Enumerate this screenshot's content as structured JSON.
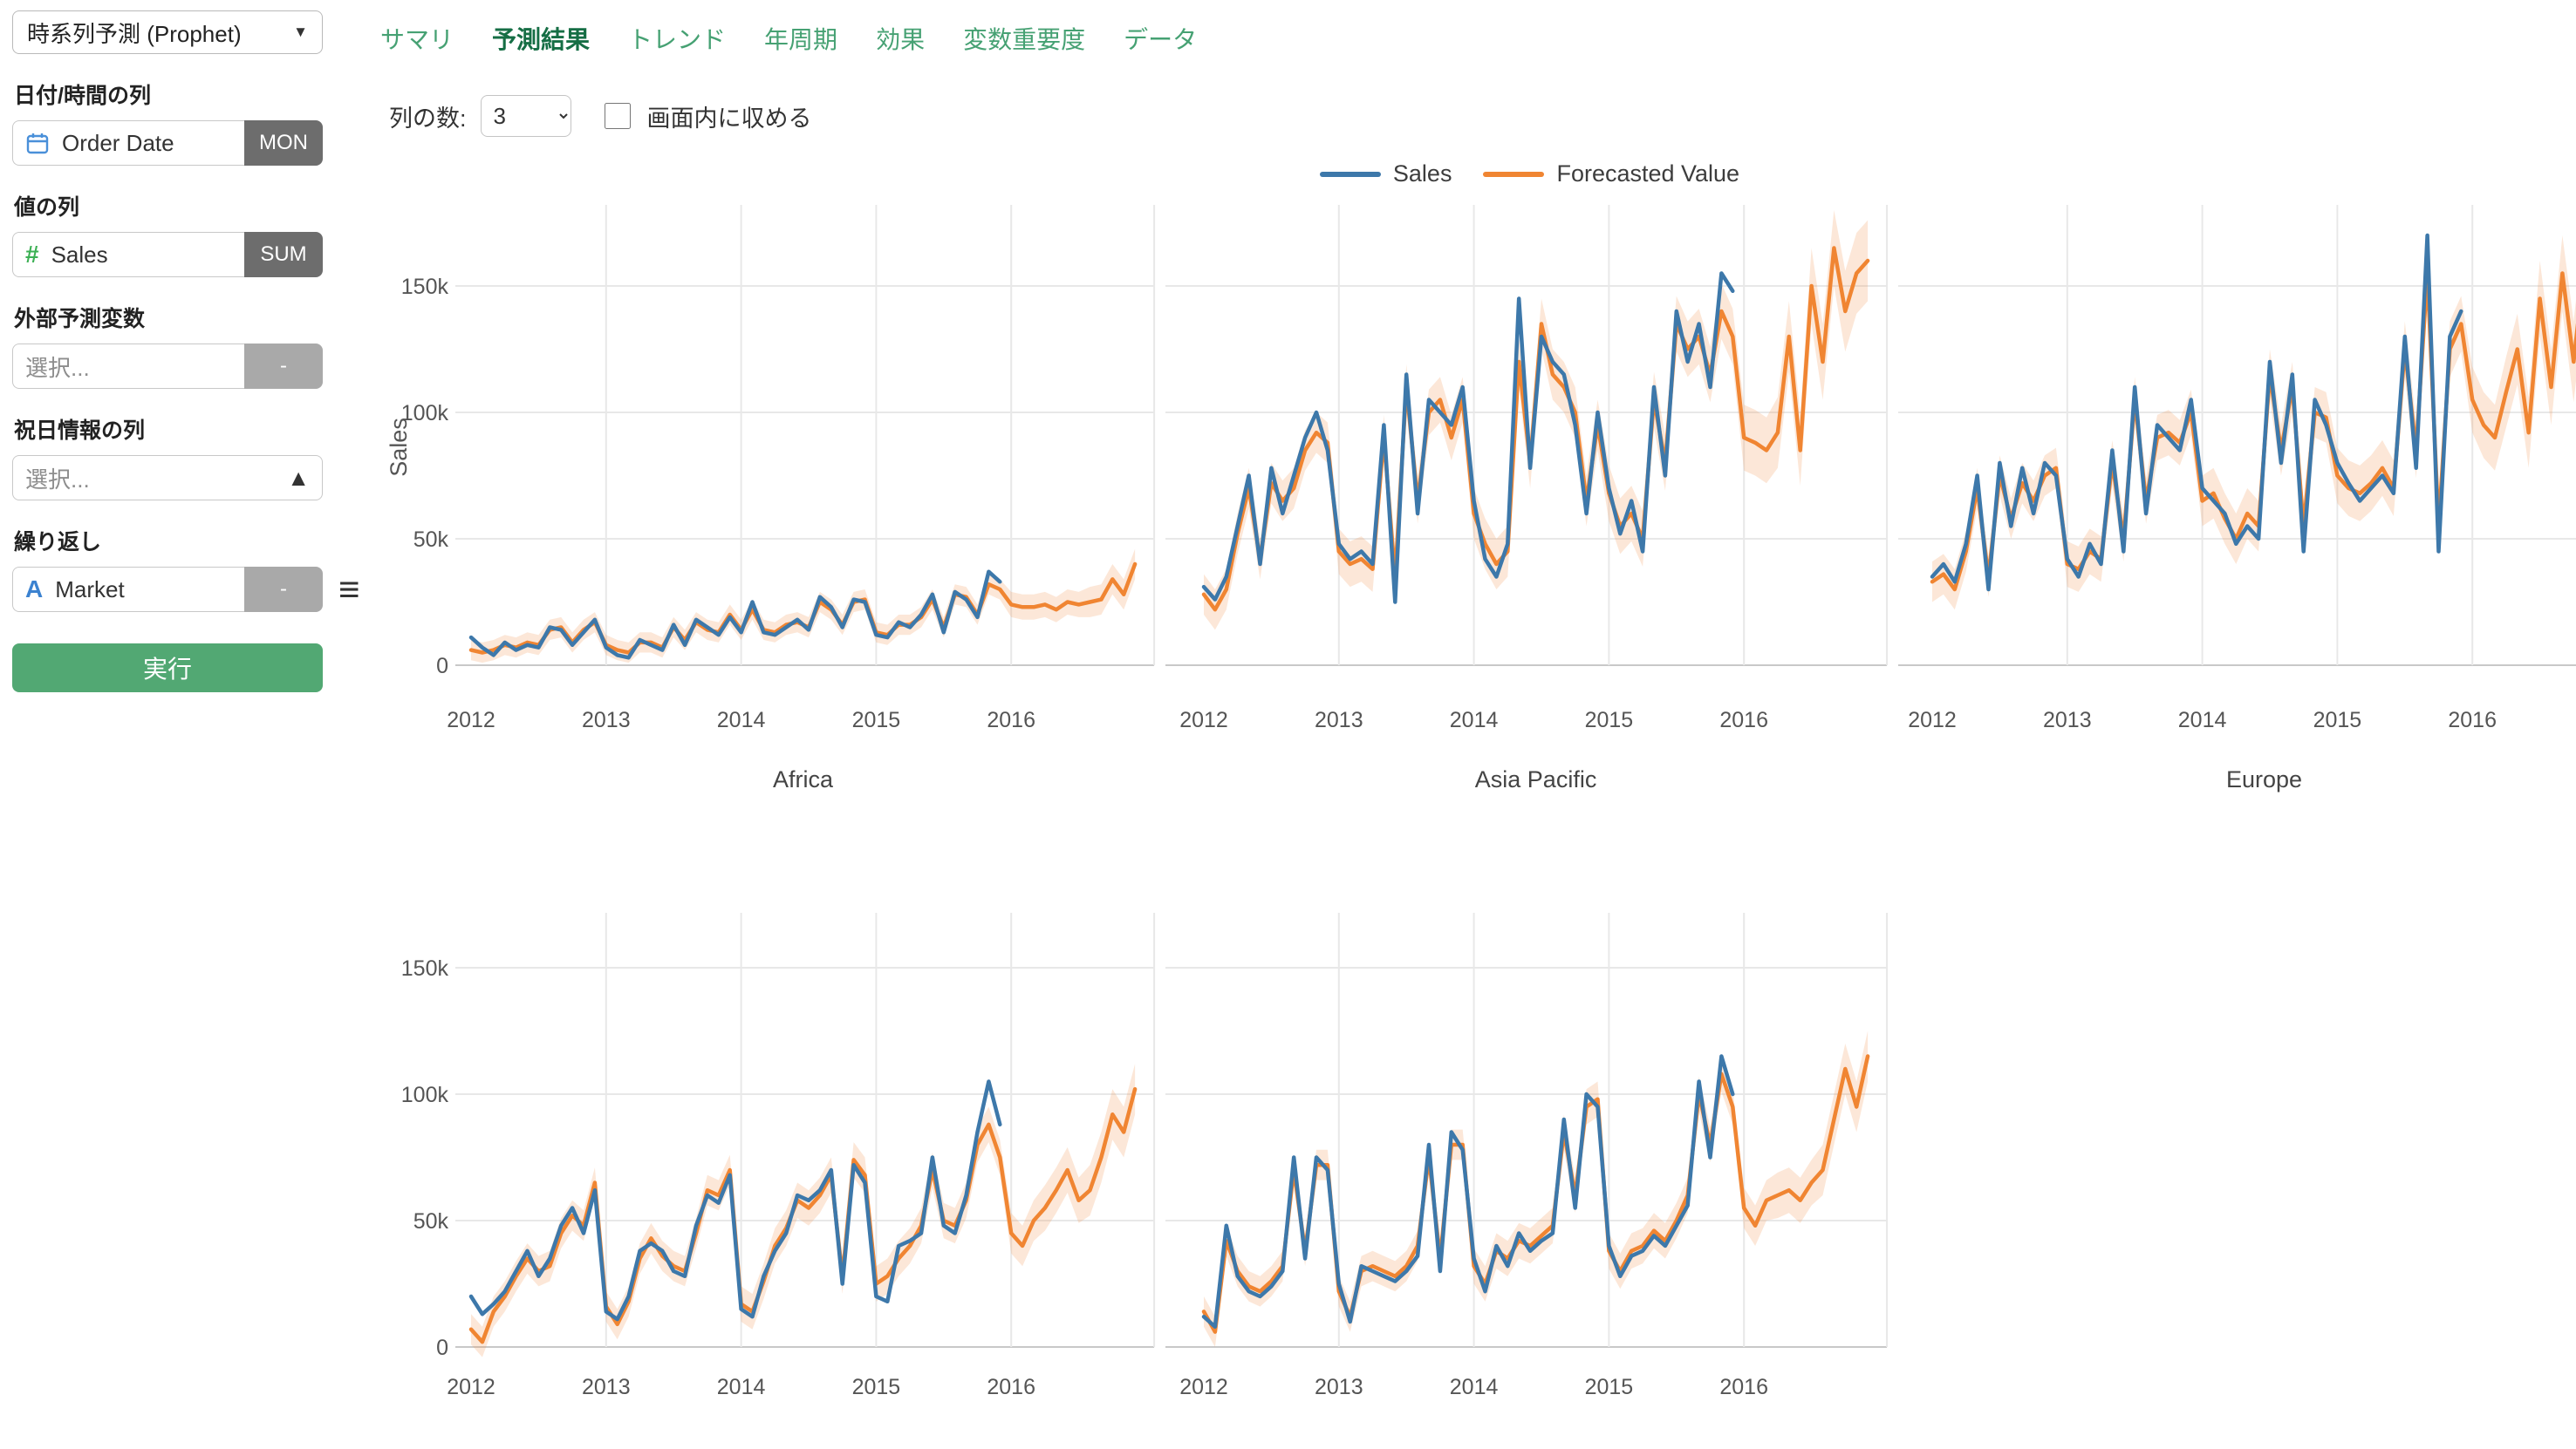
{
  "sidebar": {
    "analytics_type": "時系列予測 (Prophet)",
    "date_label": "日付/時間の列",
    "date_field": {
      "value": "Order Date",
      "badge": "MON"
    },
    "value_label": "値の列",
    "value_field": {
      "value": "Sales",
      "badge": "SUM"
    },
    "regressor_label": "外部予測変数",
    "regressor_field": {
      "placeholder": "選択...",
      "badge": "-"
    },
    "holiday_label": "祝日情報の列",
    "holiday_field": {
      "placeholder": "選択..."
    },
    "repeat_label": "繰り返し",
    "repeat_field": {
      "value": "Market",
      "badge": "-"
    },
    "run_button": "実行"
  },
  "tabs": [
    {
      "label": "サマリ",
      "active": false
    },
    {
      "label": "予測結果",
      "active": true
    },
    {
      "label": "トレンド",
      "active": false
    },
    {
      "label": "年周期",
      "active": false
    },
    {
      "label": "効果",
      "active": false
    },
    {
      "label": "変数重要度",
      "active": false
    },
    {
      "label": "データ",
      "active": false
    }
  ],
  "controls": {
    "columns_label": "列の数:",
    "columns_value": "3",
    "fit_label": "画面内に収める",
    "fit_checked": false
  },
  "legend": [
    {
      "label": "Sales",
      "color": "#3d78aa"
    },
    {
      "label": "Forecasted Value",
      "color": "#f08532"
    }
  ],
  "colors": {
    "sales_line": "#3d78aa",
    "forecast_line": "#f08532",
    "confidence_band": "#f0924e",
    "grid": "#e8e8e8",
    "zero_line": "#c8c8c8",
    "tick_text": "#555555",
    "title_text": "#444444",
    "tab_green": "#46a173",
    "tab_active_green": "#166e45",
    "run_button_green": "#52a873"
  },
  "chart_data": [
    {
      "type": "line",
      "title": "Africa",
      "ylabel": "Sales",
      "show_y_ticks": true,
      "x_years": [
        "2012",
        "2013",
        "2014",
        "2015",
        "2016"
      ],
      "y_tick_labels": [
        "0",
        "50k",
        "100k",
        "150k"
      ],
      "units": "thousands",
      "series": [
        {
          "name": "Sales",
          "values": [
            11,
            7,
            4,
            9,
            6,
            8,
            7,
            15,
            14,
            8,
            13,
            18,
            7,
            4,
            3,
            10,
            8,
            6,
            16,
            8,
            18,
            15,
            12,
            19,
            13,
            25,
            13,
            12,
            15,
            18,
            14,
            27,
            23,
            15,
            26,
            25,
            12,
            11,
            17,
            15,
            20,
            28,
            13,
            29,
            26,
            19,
            37,
            33
          ]
        },
        {
          "name": "Forecasted Value",
          "values": [
            6,
            5,
            6,
            8,
            7,
            9,
            8,
            14,
            15,
            9,
            14,
            17,
            8,
            6,
            5,
            9,
            9,
            7,
            15,
            10,
            17,
            14,
            13,
            20,
            14,
            22,
            14,
            13,
            16,
            17,
            15,
            25,
            22,
            16,
            25,
            26,
            13,
            12,
            16,
            16,
            19,
            26,
            15,
            28,
            27,
            20,
            32,
            30,
            24,
            23,
            23,
            24,
            22,
            25,
            24,
            25,
            26,
            34,
            28,
            40
          ],
          "band": [
            4,
            4,
            4,
            4,
            4,
            4,
            4,
            4,
            4,
            4,
            4,
            4,
            4,
            4,
            4,
            4,
            4,
            4,
            4,
            4,
            4,
            4,
            4,
            4,
            4,
            4,
            4,
            4,
            4,
            4,
            4,
            4,
            4,
            4,
            4,
            4,
            4,
            4,
            4,
            4,
            4,
            4,
            4,
            4,
            4,
            4,
            4,
            4,
            5,
            5,
            5,
            5,
            5,
            5,
            5,
            6,
            6,
            6,
            6,
            6
          ]
        }
      ]
    },
    {
      "type": "line",
      "title": "Asia Pacific",
      "ylabel": "",
      "show_y_ticks": false,
      "x_years": [
        "2012",
        "2013",
        "2014",
        "2015",
        "2016"
      ],
      "y_tick_labels": [
        "0",
        "50k",
        "100k",
        "150k"
      ],
      "units": "thousands",
      "series": [
        {
          "name": "Sales",
          "values": [
            31,
            26,
            35,
            55,
            75,
            40,
            78,
            60,
            75,
            90,
            100,
            85,
            48,
            42,
            45,
            40,
            95,
            25,
            115,
            60,
            105,
            100,
            95,
            110,
            65,
            42,
            35,
            48,
            145,
            78,
            130,
            120,
            115,
            95,
            60,
            100,
            70,
            52,
            65,
            45,
            110,
            75,
            140,
            120,
            135,
            110,
            155,
            148
          ]
        },
        {
          "name": "Forecasted Value",
          "values": [
            28,
            22,
            30,
            52,
            70,
            42,
            72,
            65,
            70,
            85,
            92,
            88,
            45,
            40,
            42,
            38,
            90,
            35,
            110,
            65,
            100,
            105,
            90,
            105,
            60,
            48,
            40,
            45,
            120,
            80,
            135,
            115,
            110,
            100,
            65,
            95,
            68,
            55,
            60,
            50,
            105,
            80,
            135,
            125,
            130,
            115,
            140,
            130,
            90,
            88,
            85,
            92,
            130,
            85,
            150,
            120,
            165,
            140,
            155,
            160
          ],
          "band": [
            8,
            8,
            8,
            8,
            8,
            8,
            8,
            8,
            8,
            8,
            8,
            8,
            9,
            9,
            9,
            9,
            9,
            9,
            9,
            9,
            9,
            9,
            9,
            9,
            10,
            10,
            10,
            10,
            10,
            10,
            10,
            10,
            10,
            10,
            10,
            10,
            11,
            11,
            11,
            11,
            11,
            11,
            11,
            11,
            11,
            11,
            11,
            11,
            13,
            13,
            13,
            14,
            14,
            14,
            15,
            15,
            15,
            16,
            16,
            16
          ]
        }
      ]
    },
    {
      "type": "line",
      "title": "Europe",
      "ylabel": "",
      "show_y_ticks": false,
      "x_years": [
        "2012",
        "2013",
        "2014",
        "2015",
        "2016"
      ],
      "y_tick_labels": [
        "0",
        "50k",
        "100k",
        "150k"
      ],
      "units": "thousands",
      "series": [
        {
          "name": "Sales",
          "values": [
            35,
            40,
            33,
            48,
            75,
            30,
            80,
            55,
            78,
            60,
            80,
            75,
            42,
            35,
            48,
            40,
            85,
            45,
            110,
            60,
            95,
            90,
            85,
            105,
            70,
            65,
            60,
            48,
            55,
            50,
            120,
            80,
            115,
            45,
            105,
            95,
            80,
            72,
            65,
            70,
            75,
            68,
            130,
            78,
            170,
            45,
            130,
            140
          ]
        },
        {
          "name": "Forecasted Value",
          "values": [
            33,
            36,
            30,
            45,
            70,
            35,
            75,
            58,
            72,
            65,
            75,
            78,
            40,
            38,
            45,
            42,
            80,
            50,
            105,
            65,
            90,
            92,
            88,
            100,
            65,
            68,
            58,
            50,
            60,
            55,
            115,
            85,
            110,
            55,
            100,
            98,
            75,
            70,
            68,
            72,
            78,
            70,
            125,
            85,
            155,
            55,
            125,
            135,
            105,
            95,
            90,
            108,
            125,
            92,
            145,
            110,
            155,
            120,
            160,
            130
          ],
          "band": [
            8,
            8,
            8,
            8,
            8,
            8,
            8,
            8,
            8,
            8,
            8,
            8,
            9,
            9,
            9,
            9,
            9,
            9,
            9,
            9,
            9,
            9,
            9,
            9,
            10,
            10,
            10,
            10,
            10,
            10,
            10,
            10,
            10,
            10,
            10,
            10,
            11,
            11,
            11,
            11,
            11,
            11,
            11,
            11,
            11,
            11,
            11,
            11,
            13,
            13,
            13,
            14,
            14,
            14,
            15,
            15,
            15,
            16,
            16,
            16
          ]
        }
      ]
    },
    {
      "type": "line",
      "title": "",
      "ylabel": "",
      "show_y_ticks": true,
      "x_years": [
        "2012",
        "2013",
        "2014",
        "2015",
        "2016"
      ],
      "y_tick_labels": [
        "0",
        "50k",
        "100k",
        "150k"
      ],
      "units": "thousands",
      "series": [
        {
          "name": "Sales",
          "values": [
            20,
            13,
            17,
            22,
            30,
            38,
            28,
            35,
            48,
            55,
            45,
            62,
            14,
            11,
            20,
            38,
            41,
            38,
            30,
            28,
            48,
            60,
            57,
            68,
            15,
            12,
            28,
            38,
            45,
            60,
            58,
            62,
            70,
            25,
            72,
            65,
            20,
            18,
            40,
            42,
            45,
            75,
            48,
            45,
            60,
            85,
            105,
            88
          ]
        },
        {
          "name": "Forecasted Value",
          "values": [
            7,
            2,
            14,
            20,
            28,
            35,
            30,
            32,
            45,
            52,
            48,
            65,
            16,
            9,
            18,
            35,
            43,
            36,
            32,
            30,
            45,
            62,
            60,
            70,
            17,
            14,
            26,
            40,
            47,
            58,
            55,
            60,
            68,
            28,
            74,
            68,
            25,
            28,
            35,
            40,
            48,
            70,
            50,
            48,
            58,
            80,
            88,
            75,
            45,
            40,
            50,
            55,
            62,
            70,
            58,
            62,
            75,
            92,
            85,
            102
          ],
          "band": [
            6,
            6,
            6,
            6,
            6,
            6,
            6,
            6,
            6,
            6,
            6,
            6,
            6,
            6,
            6,
            6,
            6,
            6,
            6,
            6,
            6,
            6,
            6,
            6,
            7,
            7,
            7,
            7,
            7,
            7,
            7,
            7,
            7,
            7,
            7,
            7,
            7,
            7,
            7,
            7,
            7,
            7,
            7,
            7,
            7,
            7,
            7,
            7,
            8,
            8,
            8,
            9,
            9,
            9,
            9,
            10,
            10,
            10,
            10,
            10
          ]
        }
      ]
    },
    {
      "type": "line",
      "title": "",
      "ylabel": "",
      "show_y_ticks": false,
      "x_years": [
        "2012",
        "2013",
        "2014",
        "2015",
        "2016"
      ],
      "y_tick_labels": [
        "0",
        "50k",
        "100k",
        "150k"
      ],
      "units": "thousands",
      "series": [
        {
          "name": "Sales",
          "values": [
            12,
            8,
            48,
            28,
            22,
            20,
            24,
            30,
            75,
            35,
            75,
            70,
            25,
            10,
            32,
            30,
            28,
            26,
            30,
            36,
            80,
            30,
            85,
            78,
            35,
            22,
            40,
            32,
            45,
            38,
            42,
            45,
            90,
            55,
            100,
            95,
            40,
            28,
            36,
            38,
            44,
            40,
            48,
            56,
            105,
            75,
            115,
            100
          ]
        },
        {
          "name": "Forecasted Value",
          "values": [
            14,
            6,
            42,
            30,
            24,
            22,
            26,
            32,
            70,
            38,
            72,
            72,
            22,
            12,
            30,
            32,
            30,
            28,
            32,
            40,
            75,
            35,
            80,
            80,
            32,
            25,
            38,
            35,
            42,
            40,
            44,
            48,
            85,
            60,
            95,
            98,
            38,
            30,
            38,
            40,
            46,
            42,
            50,
            60,
            100,
            80,
            108,
            95,
            55,
            48,
            58,
            60,
            62,
            58,
            65,
            70,
            90,
            110,
            95,
            115
          ],
          "band": [
            6,
            6,
            6,
            6,
            6,
            6,
            6,
            6,
            6,
            6,
            6,
            6,
            6,
            6,
            6,
            6,
            6,
            6,
            6,
            6,
            6,
            6,
            6,
            6,
            7,
            7,
            7,
            7,
            7,
            7,
            7,
            7,
            7,
            7,
            7,
            7,
            7,
            7,
            7,
            7,
            7,
            7,
            7,
            7,
            7,
            7,
            7,
            7,
            8,
            8,
            8,
            9,
            9,
            9,
            9,
            10,
            10,
            10,
            10,
            10
          ]
        }
      ]
    }
  ]
}
